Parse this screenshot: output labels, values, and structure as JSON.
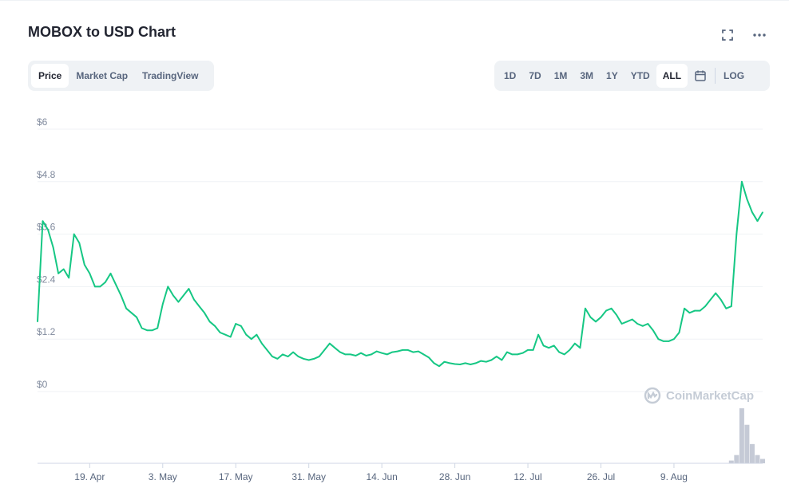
{
  "header": {
    "title": "MOBOX to USD Chart"
  },
  "view_tabs": [
    {
      "label": "Price",
      "active": true
    },
    {
      "label": "Market Cap",
      "active": false
    },
    {
      "label": "TradingView",
      "active": false
    }
  ],
  "range_tabs": [
    {
      "label": "1D",
      "active": false
    },
    {
      "label": "7D",
      "active": false
    },
    {
      "label": "1M",
      "active": false
    },
    {
      "label": "3M",
      "active": false
    },
    {
      "label": "1Y",
      "active": false
    },
    {
      "label": "YTD",
      "active": false
    },
    {
      "label": "ALL",
      "active": true
    }
  ],
  "log_label": "LOG",
  "icons": {
    "fullscreen": "fullscreen-icon",
    "more": "more-icon",
    "calendar": "calendar-icon",
    "watermark": "coinmarketcap-logo-icon"
  },
  "watermark": "CoinMarketCap",
  "colors": {
    "line": "#16c784",
    "volume": "#c5cad6",
    "grid": "#eff2f5",
    "axis_text": "#808a9d"
  },
  "chart_data": {
    "type": "line",
    "title": "MOBOX to USD Chart",
    "xlabel": "",
    "ylabel": "",
    "y_ticks": [
      "$6",
      "$4.8",
      "$3.6",
      "$2.4",
      "$1.2",
      "$0"
    ],
    "ylim": [
      0,
      6
    ],
    "x_ticks": [
      "19. Apr",
      "3. May",
      "17. May",
      "31. May",
      "14. Jun",
      "28. Jun",
      "12. Jul",
      "26. Jul",
      "9. Aug"
    ],
    "grid": true,
    "series": [
      {
        "x": [
          "2021-04-09",
          "2021-04-10",
          "2021-04-11",
          "2021-04-12",
          "2021-04-13",
          "2021-04-14",
          "2021-04-15",
          "2021-04-16",
          "2021-04-17",
          "2021-04-18",
          "2021-04-19",
          "2021-04-20",
          "2021-04-21",
          "2021-04-22",
          "2021-04-23",
          "2021-04-24",
          "2021-04-25",
          "2021-04-26",
          "2021-04-27",
          "2021-04-28",
          "2021-04-29",
          "2021-04-30",
          "2021-05-01",
          "2021-05-02",
          "2021-05-03",
          "2021-05-04",
          "2021-05-05",
          "2021-05-06",
          "2021-05-07",
          "2021-05-08",
          "2021-05-09",
          "2021-05-10",
          "2021-05-11",
          "2021-05-12",
          "2021-05-13",
          "2021-05-14",
          "2021-05-15",
          "2021-05-16",
          "2021-05-17",
          "2021-05-18",
          "2021-05-19",
          "2021-05-20",
          "2021-05-21",
          "2021-05-22",
          "2021-05-23",
          "2021-05-24",
          "2021-05-25",
          "2021-05-26",
          "2021-05-27",
          "2021-05-28",
          "2021-05-29",
          "2021-05-30",
          "2021-05-31",
          "2021-06-01",
          "2021-06-02",
          "2021-06-03",
          "2021-06-04",
          "2021-06-05",
          "2021-06-06",
          "2021-06-07",
          "2021-06-08",
          "2021-06-09",
          "2021-06-10",
          "2021-06-11",
          "2021-06-12",
          "2021-06-13",
          "2021-06-14",
          "2021-06-15",
          "2021-06-16",
          "2021-06-17",
          "2021-06-18",
          "2021-06-19",
          "2021-06-20",
          "2021-06-21",
          "2021-06-22",
          "2021-06-23",
          "2021-06-24",
          "2021-06-25",
          "2021-06-26",
          "2021-06-27",
          "2021-06-28",
          "2021-06-29",
          "2021-06-30",
          "2021-07-01",
          "2021-07-02",
          "2021-07-03",
          "2021-07-04",
          "2021-07-05",
          "2021-07-06",
          "2021-07-07",
          "2021-07-08",
          "2021-07-09",
          "2021-07-10",
          "2021-07-11",
          "2021-07-12",
          "2021-07-13",
          "2021-07-14",
          "2021-07-15",
          "2021-07-16",
          "2021-07-17",
          "2021-07-18",
          "2021-07-19",
          "2021-07-20",
          "2021-07-21",
          "2021-07-22",
          "2021-07-23",
          "2021-07-24",
          "2021-07-25",
          "2021-07-26",
          "2021-07-27",
          "2021-07-28",
          "2021-07-29",
          "2021-07-30",
          "2021-07-31",
          "2021-08-01",
          "2021-08-02",
          "2021-08-03",
          "2021-08-04",
          "2021-08-05",
          "2021-08-06",
          "2021-08-07",
          "2021-08-08",
          "2021-08-09",
          "2021-08-10",
          "2021-08-11",
          "2021-08-12",
          "2021-08-13",
          "2021-08-14",
          "2021-08-15",
          "2021-08-16",
          "2021-08-17",
          "2021-08-18",
          "2021-08-19",
          "2021-08-20",
          "2021-08-21",
          "2021-08-22",
          "2021-08-23",
          "2021-08-24",
          "2021-08-25",
          "2021-08-26"
        ],
        "values": [
          1.6,
          3.9,
          3.7,
          3.3,
          2.7,
          2.8,
          2.6,
          3.6,
          3.4,
          2.9,
          2.7,
          2.4,
          2.4,
          2.5,
          2.7,
          2.45,
          2.2,
          1.9,
          1.8,
          1.7,
          1.45,
          1.4,
          1.4,
          1.45,
          2.0,
          2.4,
          2.2,
          2.05,
          2.2,
          2.35,
          2.1,
          1.95,
          1.8,
          1.6,
          1.5,
          1.35,
          1.3,
          1.25,
          1.55,
          1.5,
          1.3,
          1.2,
          1.3,
          1.1,
          0.95,
          0.8,
          0.75,
          0.85,
          0.8,
          0.9,
          0.8,
          0.75,
          0.72,
          0.75,
          0.8,
          0.95,
          1.1,
          1.0,
          0.9,
          0.85,
          0.85,
          0.82,
          0.88,
          0.82,
          0.85,
          0.92,
          0.88,
          0.85,
          0.9,
          0.92,
          0.95,
          0.95,
          0.9,
          0.92,
          0.85,
          0.78,
          0.65,
          0.58,
          0.68,
          0.65,
          0.63,
          0.62,
          0.65,
          0.62,
          0.65,
          0.7,
          0.68,
          0.72,
          0.8,
          0.72,
          0.9,
          0.85,
          0.85,
          0.88,
          0.95,
          0.95,
          1.3,
          1.05,
          1.0,
          1.05,
          0.9,
          0.85,
          0.95,
          1.1,
          1.0,
          1.9,
          1.7,
          1.6,
          1.7,
          1.85,
          1.9,
          1.75,
          1.55,
          1.6,
          1.65,
          1.55,
          1.5,
          1.55,
          1.4,
          1.2,
          1.15,
          1.15,
          1.2,
          1.35,
          1.9,
          1.8,
          1.85,
          1.85,
          1.95,
          2.1,
          2.25,
          2.1,
          1.9,
          1.95,
          3.6,
          4.8,
          4.4,
          4.1,
          3.9,
          4.1
        ]
      }
    ],
    "volume": {
      "x": [
        "2021-08-20",
        "2021-08-21",
        "2021-08-22",
        "2021-08-23",
        "2021-08-24",
        "2021-08-25",
        "2021-08-26"
      ],
      "values": [
        0.05,
        0.15,
        1.0,
        0.7,
        0.35,
        0.15,
        0.08
      ]
    }
  }
}
